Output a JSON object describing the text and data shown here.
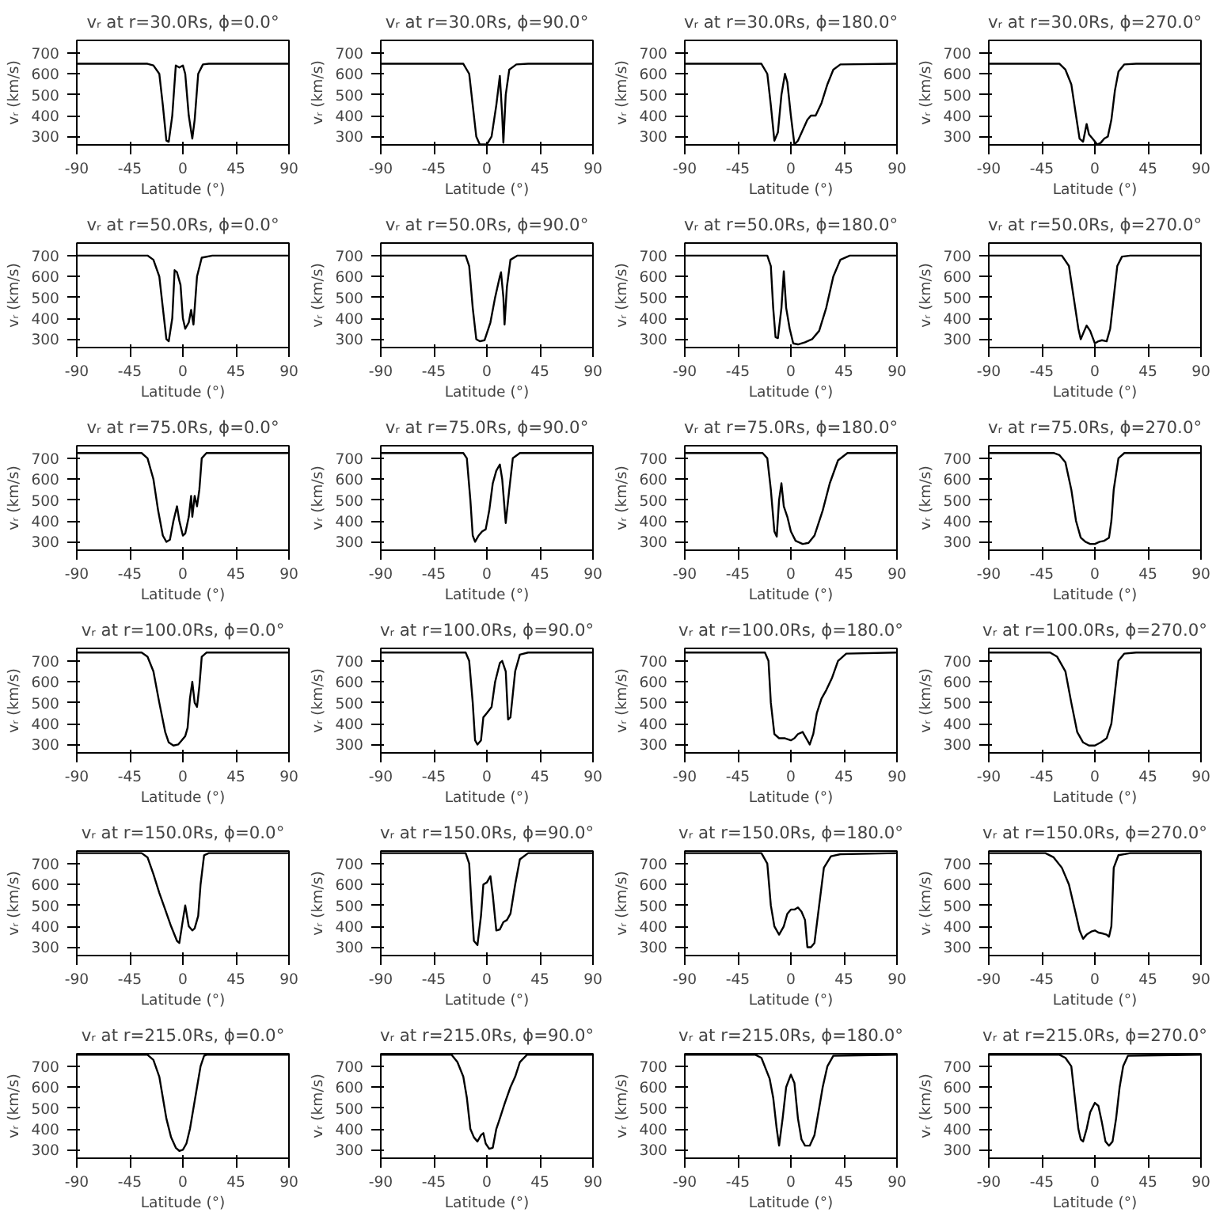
{
  "chart_data": [
    {
      "type": "line",
      "title": "vᵣ at r=30.0Rs, ϕ=0.0°",
      "xlabel": "Latitude (°)",
      "ylabel": "vᵣ (km/s)",
      "xlim": [
        -90,
        90
      ],
      "ylim": [
        260,
        760
      ],
      "xticks": [
        -90,
        -45,
        0,
        45,
        90
      ],
      "yticks": [
        300,
        400,
        500,
        600,
        700
      ],
      "series": [
        {
          "color": "#000000",
          "x": [
            -90,
            -30,
            -25,
            -20,
            -17,
            -14,
            -12,
            -9,
            -6,
            -3,
            0,
            2,
            5,
            8,
            10,
            13,
            17,
            22,
            90
          ],
          "values": [
            648,
            648,
            640,
            600,
            450,
            280,
            275,
            400,
            640,
            630,
            640,
            600,
            400,
            290,
            380,
            600,
            645,
            648,
            648
          ]
        }
      ]
    },
    {
      "type": "line",
      "title": "vᵣ at r=30.0Rs, ϕ=90.0°",
      "xlabel": "Latitude (°)",
      "ylabel": "vᵣ (km/s)",
      "xlim": [
        -90,
        90
      ],
      "ylim": [
        260,
        760
      ],
      "xticks": [
        -90,
        -45,
        0,
        45,
        90
      ],
      "yticks": [
        300,
        400,
        500,
        600,
        700
      ],
      "series": [
        {
          "color": "#000000",
          "x": [
            -90,
            -20,
            -15,
            -12,
            -9,
            -6,
            0,
            4,
            8,
            11,
            13,
            14,
            16,
            19,
            25,
            35,
            90
          ],
          "values": [
            648,
            648,
            600,
            450,
            300,
            262,
            262,
            300,
            450,
            590,
            400,
            270,
            500,
            620,
            645,
            648,
            648
          ]
        }
      ]
    },
    {
      "type": "line",
      "title": "vᵣ at r=30.0Rs, ϕ=180.0°",
      "xlabel": "Latitude (°)",
      "ylabel": "vᵣ (km/s)",
      "xlim": [
        -90,
        90
      ],
      "ylim": [
        260,
        760
      ],
      "xticks": [
        -90,
        -45,
        0,
        45,
        90
      ],
      "yticks": [
        300,
        400,
        500,
        600,
        700
      ],
      "series": [
        {
          "color": "#000000",
          "x": [
            -90,
            -25,
            -20,
            -17,
            -14,
            -11,
            -8,
            -5,
            -3,
            0,
            3,
            6,
            10,
            14,
            17,
            21,
            26,
            31,
            36,
            42,
            90
          ],
          "values": [
            648,
            648,
            600,
            450,
            280,
            320,
            500,
            600,
            560,
            400,
            262,
            280,
            330,
            380,
            400,
            400,
            460,
            550,
            620,
            645,
            648
          ]
        }
      ]
    },
    {
      "type": "line",
      "title": "vᵣ at r=30.0Rs, ϕ=270.0°",
      "xlabel": "Latitude (°)",
      "ylabel": "vᵣ (km/s)",
      "xlim": [
        -90,
        90
      ],
      "ylim": [
        260,
        760
      ],
      "xticks": [
        -90,
        -45,
        0,
        45,
        90
      ],
      "yticks": [
        300,
        400,
        500,
        600,
        700
      ],
      "series": [
        {
          "color": "#000000",
          "x": [
            -90,
            -30,
            -25,
            -20,
            -16,
            -13,
            -10,
            -7,
            -5,
            -2,
            2,
            5,
            8,
            11,
            14,
            17,
            20,
            25,
            35,
            90
          ],
          "values": [
            648,
            648,
            620,
            550,
            400,
            290,
            275,
            360,
            310,
            290,
            262,
            270,
            290,
            300,
            380,
            520,
            610,
            645,
            648,
            648
          ]
        }
      ]
    },
    {
      "type": "line",
      "title": "vᵣ at r=50.0Rs, ϕ=0.0°",
      "xlabel": "Latitude (°)",
      "ylabel": "vᵣ (km/s)",
      "xlim": [
        -90,
        90
      ],
      "ylim": [
        260,
        760
      ],
      "xticks": [
        -90,
        -45,
        0,
        45,
        90
      ],
      "yticks": [
        300,
        400,
        500,
        600,
        700
      ],
      "series": [
        {
          "color": "#000000",
          "x": [
            -90,
            -30,
            -25,
            -20,
            -17,
            -14,
            -12,
            -9,
            -7,
            -5,
            -2,
            0,
            2,
            5,
            7,
            9,
            12,
            16,
            25,
            90
          ],
          "values": [
            700,
            700,
            680,
            600,
            450,
            300,
            290,
            400,
            630,
            620,
            560,
            400,
            350,
            380,
            440,
            370,
            600,
            690,
            700,
            700
          ]
        }
      ]
    },
    {
      "type": "line",
      "title": "vᵣ at r=50.0Rs, ϕ=90.0°",
      "xlabel": "Latitude (°)",
      "ylabel": "vᵣ (km/s)",
      "xlim": [
        -90,
        90
      ],
      "ylim": [
        260,
        760
      ],
      "xticks": [
        -90,
        -45,
        0,
        45,
        90
      ],
      "yticks": [
        300,
        400,
        500,
        600,
        700
      ],
      "series": [
        {
          "color": "#000000",
          "x": [
            -90,
            -18,
            -15,
            -12,
            -9,
            -6,
            -2,
            3,
            7,
            11,
            12,
            14,
            15,
            17,
            20,
            26,
            90
          ],
          "values": [
            700,
            700,
            650,
            450,
            300,
            290,
            295,
            380,
            500,
            600,
            620,
            500,
            370,
            550,
            680,
            700,
            700
          ]
        }
      ]
    },
    {
      "type": "line",
      "title": "vᵣ at r=50.0Rs, ϕ=180.0°",
      "xlabel": "Latitude (°)",
      "ylabel": "vᵣ (km/s)",
      "xlim": [
        -90,
        90
      ],
      "ylim": [
        260,
        760
      ],
      "xticks": [
        -90,
        -45,
        0,
        45,
        90
      ],
      "yticks": [
        300,
        400,
        500,
        600,
        700
      ],
      "series": [
        {
          "color": "#000000",
          "x": [
            -90,
            -20,
            -17,
            -15,
            -13,
            -11,
            -8,
            -6,
            -4,
            -1,
            2,
            6,
            12,
            18,
            24,
            30,
            36,
            42,
            50,
            90
          ],
          "values": [
            700,
            700,
            650,
            450,
            310,
            305,
            450,
            625,
            450,
            350,
            280,
            275,
            285,
            300,
            340,
            450,
            600,
            680,
            700,
            700
          ]
        }
      ]
    },
    {
      "type": "line",
      "title": "vᵣ at r=50.0Rs, ϕ=270.0°",
      "xlabel": "Latitude (°)",
      "ylabel": "vᵣ (km/s)",
      "xlim": [
        -90,
        90
      ],
      "ylim": [
        260,
        760
      ],
      "xticks": [
        -90,
        -45,
        0,
        45,
        90
      ],
      "yticks": [
        300,
        400,
        500,
        600,
        700
      ],
      "series": [
        {
          "color": "#000000",
          "x": [
            -90,
            -28,
            -22,
            -18,
            -14,
            -12,
            -9,
            -7,
            -4,
            -2,
            0,
            3,
            6,
            10,
            13,
            16,
            19,
            23,
            30,
            90
          ],
          "values": [
            700,
            700,
            650,
            500,
            350,
            300,
            340,
            365,
            340,
            310,
            280,
            290,
            295,
            290,
            350,
            500,
            650,
            695,
            700,
            700
          ]
        }
      ]
    },
    {
      "type": "line",
      "title": "vᵣ at r=75.0Rs, ϕ=0.0°",
      "xlabel": "Latitude (°)",
      "ylabel": "vᵣ (km/s)",
      "xlim": [
        -90,
        90
      ],
      "ylim": [
        260,
        760
      ],
      "xticks": [
        -90,
        -45,
        0,
        45,
        90
      ],
      "yticks": [
        300,
        400,
        500,
        600,
        700
      ],
      "series": [
        {
          "color": "#000000",
          "x": [
            -90,
            -35,
            -30,
            -25,
            -21,
            -17,
            -14,
            -11,
            -8,
            -5,
            -3,
            0,
            2,
            5,
            7,
            8,
            10,
            12,
            14,
            16,
            20,
            90
          ],
          "values": [
            725,
            725,
            700,
            600,
            450,
            330,
            300,
            310,
            400,
            470,
            400,
            330,
            340,
            420,
            520,
            420,
            520,
            470,
            550,
            700,
            725,
            725
          ]
        }
      ]
    },
    {
      "type": "line",
      "title": "vᵣ at r=75.0Rs, ϕ=90.0°",
      "xlabel": "Latitude (°)",
      "ylabel": "vᵣ (km/s)",
      "xlim": [
        -90,
        90
      ],
      "ylim": [
        260,
        760
      ],
      "xticks": [
        -90,
        -45,
        0,
        45,
        90
      ],
      "yticks": [
        300,
        400,
        500,
        600,
        700
      ],
      "series": [
        {
          "color": "#000000",
          "x": [
            -90,
            -20,
            -17,
            -14,
            -12,
            -10,
            -7,
            -4,
            -1,
            2,
            5,
            8,
            11,
            13,
            16,
            19,
            22,
            28,
            90
          ],
          "values": [
            725,
            725,
            700,
            500,
            330,
            300,
            330,
            350,
            360,
            450,
            580,
            640,
            670,
            600,
            390,
            550,
            700,
            725,
            725
          ]
        }
      ]
    },
    {
      "type": "line",
      "title": "vᵣ at r=75.0Rs, ϕ=180.0°",
      "xlabel": "Latitude (°)",
      "ylabel": "vᵣ (km/s)",
      "xlim": [
        -90,
        90
      ],
      "ylim": [
        260,
        760
      ],
      "xticks": [
        -90,
        -45,
        0,
        45,
        90
      ],
      "yticks": [
        300,
        400,
        500,
        600,
        700
      ],
      "series": [
        {
          "color": "#000000",
          "x": [
            -90,
            -24,
            -20,
            -17,
            -14,
            -12,
            -10,
            -8,
            -6,
            -3,
            0,
            4,
            10,
            15,
            20,
            27,
            33,
            40,
            48,
            90
          ],
          "values": [
            725,
            725,
            700,
            550,
            350,
            325,
            500,
            580,
            470,
            420,
            350,
            305,
            290,
            295,
            330,
            450,
            580,
            690,
            725,
            725
          ]
        }
      ]
    },
    {
      "type": "line",
      "title": "vᵣ at r=75.0Rs, ϕ=270.0°",
      "xlabel": "Latitude (°)",
      "ylabel": "vᵣ (km/s)",
      "xlim": [
        -90,
        90
      ],
      "ylim": [
        260,
        760
      ],
      "xticks": [
        -90,
        -45,
        0,
        45,
        90
      ],
      "yticks": [
        300,
        400,
        500,
        600,
        700
      ],
      "series": [
        {
          "color": "#000000",
          "x": [
            -90,
            -35,
            -30,
            -25,
            -20,
            -16,
            -12,
            -8,
            -4,
            0,
            4,
            8,
            12,
            14,
            16,
            20,
            25,
            90
          ],
          "values": [
            725,
            725,
            715,
            680,
            550,
            400,
            320,
            300,
            290,
            290,
            300,
            305,
            320,
            400,
            550,
            700,
            725,
            725
          ]
        }
      ]
    },
    {
      "type": "line",
      "title": "vᵣ at r=100.0Rs, ϕ=0.0°",
      "xlabel": "Latitude (°)",
      "ylabel": "vᵣ (km/s)",
      "xlim": [
        -90,
        90
      ],
      "ylim": [
        260,
        760
      ],
      "xticks": [
        -90,
        -45,
        0,
        45,
        90
      ],
      "yticks": [
        300,
        400,
        500,
        600,
        700
      ],
      "series": [
        {
          "color": "#000000",
          "x": [
            -90,
            -35,
            -30,
            -25,
            -20,
            -15,
            -12,
            -8,
            -4,
            -1,
            2,
            4,
            6,
            8,
            10,
            12,
            14,
            16,
            20,
            90
          ],
          "values": [
            740,
            740,
            720,
            650,
            500,
            360,
            310,
            295,
            300,
            320,
            340,
            380,
            520,
            600,
            500,
            480,
            580,
            720,
            740,
            740
          ]
        }
      ]
    },
    {
      "type": "line",
      "title": "vᵣ at r=100.0Rs, ϕ=90.0°",
      "xlabel": "Latitude (°)",
      "ylabel": "vᵣ (km/s)",
      "xlim": [
        -90,
        90
      ],
      "ylim": [
        260,
        760
      ],
      "xticks": [
        -90,
        -45,
        0,
        45,
        90
      ],
      "yticks": [
        300,
        400,
        500,
        600,
        700
      ],
      "series": [
        {
          "color": "#000000",
          "x": [
            -90,
            -18,
            -15,
            -12,
            -10,
            -8,
            -5,
            -3,
            0,
            4,
            7,
            11,
            13,
            16,
            18,
            20,
            24,
            28,
            35,
            90
          ],
          "values": [
            740,
            740,
            700,
            500,
            320,
            300,
            320,
            430,
            450,
            480,
            600,
            690,
            700,
            650,
            420,
            430,
            650,
            730,
            740,
            740
          ]
        }
      ]
    },
    {
      "type": "line",
      "title": "vᵣ at r=100.0Rs, ϕ=180.0°",
      "xlabel": "Latitude (°)",
      "ylabel": "vᵣ (km/s)",
      "xlim": [
        -90,
        90
      ],
      "ylim": [
        260,
        760
      ],
      "xticks": [
        -90,
        -45,
        0,
        45,
        90
      ],
      "yticks": [
        300,
        400,
        500,
        600,
        700
      ],
      "series": [
        {
          "color": "#000000",
          "x": [
            -90,
            -22,
            -19,
            -17,
            -14,
            -10,
            -5,
            0,
            3,
            6,
            10,
            13,
            16,
            19,
            22,
            26,
            30,
            35,
            40,
            47,
            90
          ],
          "values": [
            740,
            740,
            700,
            500,
            350,
            330,
            330,
            320,
            330,
            350,
            360,
            330,
            300,
            350,
            450,
            520,
            560,
            620,
            700,
            735,
            740
          ]
        }
      ]
    },
    {
      "type": "line",
      "title": "vᵣ at r=100.0Rs, ϕ=270.0°",
      "xlabel": "Latitude (°)",
      "ylabel": "vᵣ (km/s)",
      "xlim": [
        -90,
        90
      ],
      "ylim": [
        260,
        760
      ],
      "xticks": [
        -90,
        -45,
        0,
        45,
        90
      ],
      "yticks": [
        300,
        400,
        500,
        600,
        700
      ],
      "series": [
        {
          "color": "#000000",
          "x": [
            -90,
            -38,
            -32,
            -25,
            -20,
            -15,
            -10,
            -5,
            0,
            5,
            10,
            14,
            17,
            20,
            25,
            35,
            90
          ],
          "values": [
            740,
            740,
            720,
            650,
            500,
            360,
            310,
            295,
            295,
            310,
            330,
            400,
            550,
            700,
            735,
            740,
            740
          ]
        }
      ]
    },
    {
      "type": "line",
      "title": "vᵣ at r=150.0Rs, ϕ=0.0°",
      "xlabel": "Latitude (°)",
      "ylabel": "vᵣ (km/s)",
      "xlim": [
        -90,
        90
      ],
      "ylim": [
        260,
        760
      ],
      "xticks": [
        -90,
        -45,
        0,
        45,
        90
      ],
      "yticks": [
        300,
        400,
        500,
        600,
        700
      ],
      "series": [
        {
          "color": "#000000",
          "x": [
            -90,
            -35,
            -30,
            -25,
            -20,
            -15,
            -10,
            -5,
            -3,
            0,
            2,
            5,
            8,
            10,
            13,
            15,
            18,
            22,
            90
          ],
          "values": [
            750,
            750,
            730,
            650,
            560,
            480,
            400,
            330,
            320,
            430,
            500,
            400,
            380,
            390,
            450,
            600,
            740,
            750,
            750
          ]
        }
      ]
    },
    {
      "type": "line",
      "title": "vᵣ at r=150.0Rs, ϕ=90.0°",
      "xlabel": "Latitude (°)",
      "ylabel": "vᵣ (km/s)",
      "xlim": [
        -90,
        90
      ],
      "ylim": [
        260,
        760
      ],
      "xticks": [
        -90,
        -45,
        0,
        45,
        90
      ],
      "yticks": [
        300,
        400,
        500,
        600,
        700
      ],
      "series": [
        {
          "color": "#000000",
          "x": [
            -90,
            -18,
            -15,
            -13,
            -11,
            -8,
            -5,
            -3,
            0,
            3,
            5,
            8,
            11,
            14,
            17,
            20,
            24,
            28,
            35,
            90
          ],
          "values": [
            750,
            750,
            700,
            500,
            330,
            310,
            450,
            600,
            610,
            640,
            550,
            380,
            385,
            420,
            430,
            460,
            600,
            720,
            750,
            750
          ]
        }
      ]
    },
    {
      "type": "line",
      "title": "vᵣ at r=150.0Rs, ϕ=180.0°",
      "xlabel": "Latitude (°)",
      "ylabel": "vᵣ (km/s)",
      "xlim": [
        -90,
        90
      ],
      "ylim": [
        260,
        760
      ],
      "xticks": [
        -90,
        -45,
        0,
        45,
        90
      ],
      "yticks": [
        300,
        400,
        500,
        600,
        700
      ],
      "series": [
        {
          "color": "#000000",
          "x": [
            -90,
            -25,
            -20,
            -17,
            -14,
            -10,
            -6,
            -3,
            0,
            3,
            6,
            9,
            12,
            14,
            17,
            20,
            24,
            28,
            34,
            42,
            90
          ],
          "values": [
            750,
            750,
            700,
            500,
            400,
            360,
            400,
            460,
            480,
            480,
            490,
            470,
            430,
            300,
            300,
            320,
            500,
            680,
            735,
            745,
            750
          ]
        }
      ]
    },
    {
      "type": "line",
      "title": "vᵣ at r=150.0Rs, ϕ=270.0°",
      "xlabel": "Latitude (°)",
      "ylabel": "vᵣ (km/s)",
      "xlim": [
        -90,
        90
      ],
      "ylim": [
        260,
        760
      ],
      "xticks": [
        -90,
        -45,
        0,
        45,
        90
      ],
      "yticks": [
        300,
        400,
        500,
        600,
        700
      ],
      "series": [
        {
          "color": "#000000",
          "x": [
            -90,
            -42,
            -35,
            -28,
            -22,
            -17,
            -13,
            -10,
            -7,
            -3,
            0,
            3,
            7,
            10,
            12,
            14,
            16,
            20,
            30,
            90
          ],
          "values": [
            750,
            750,
            730,
            680,
            600,
            480,
            380,
            340,
            360,
            375,
            380,
            370,
            365,
            360,
            350,
            400,
            680,
            740,
            750,
            750
          ]
        }
      ]
    },
    {
      "type": "line",
      "title": "vᵣ at r=215.0Rs, ϕ=0.0°",
      "xlabel": "Latitude (°)",
      "ylabel": "vᵣ (km/s)",
      "xlim": [
        -90,
        90
      ],
      "ylim": [
        260,
        760
      ],
      "xticks": [
        -90,
        -45,
        0,
        45,
        90
      ],
      "yticks": [
        300,
        400,
        500,
        600,
        700
      ],
      "series": [
        {
          "color": "#000000",
          "x": [
            -90,
            -30,
            -25,
            -20,
            -17,
            -14,
            -10,
            -6,
            -3,
            0,
            3,
            6,
            9,
            12,
            15,
            18,
            20,
            90
          ],
          "values": [
            755,
            755,
            730,
            650,
            550,
            450,
            360,
            310,
            295,
            300,
            330,
            400,
            500,
            600,
            700,
            750,
            755,
            755
          ]
        }
      ]
    },
    {
      "type": "line",
      "title": "vᵣ at r=215.0Rs, ϕ=90.0°",
      "xlabel": "Latitude (°)",
      "ylabel": "vᵣ (km/s)",
      "xlim": [
        -90,
        90
      ],
      "ylim": [
        260,
        760
      ],
      "xticks": [
        -90,
        -45,
        0,
        45,
        90
      ],
      "yticks": [
        300,
        400,
        500,
        600,
        700
      ],
      "series": [
        {
          "color": "#000000",
          "x": [
            -90,
            -30,
            -25,
            -20,
            -17,
            -14,
            -11,
            -8,
            -5,
            -3,
            -1,
            2,
            5,
            8,
            11,
            15,
            20,
            24,
            28,
            34,
            90
          ],
          "values": [
            755,
            755,
            720,
            650,
            550,
            400,
            360,
            340,
            370,
            380,
            330,
            305,
            310,
            400,
            450,
            520,
            600,
            650,
            720,
            755,
            755
          ]
        }
      ]
    },
    {
      "type": "line",
      "title": "vᵣ at r=215.0Rs, ϕ=180.0°",
      "xlabel": "Latitude (°)",
      "ylabel": "vᵣ (km/s)",
      "xlim": [
        -90,
        90
      ],
      "ylim": [
        260,
        760
      ],
      "xticks": [
        -90,
        -45,
        0,
        45,
        90
      ],
      "yticks": [
        300,
        400,
        500,
        600,
        700
      ],
      "series": [
        {
          "color": "#000000",
          "x": [
            -90,
            -30,
            -25,
            -18,
            -15,
            -12,
            -10,
            -7,
            -4,
            0,
            3,
            6,
            9,
            12,
            16,
            20,
            24,
            27,
            31,
            36,
            90
          ],
          "values": [
            755,
            755,
            740,
            640,
            550,
            400,
            320,
            450,
            600,
            660,
            620,
            450,
            350,
            320,
            320,
            370,
            500,
            600,
            700,
            750,
            755
          ]
        }
      ]
    },
    {
      "type": "line",
      "title": "vᵣ at r=215.0Rs, ϕ=270.0°",
      "xlabel": "Latitude (°)",
      "ylabel": "vᵣ (km/s)",
      "xlim": [
        -90,
        90
      ],
      "ylim": [
        260,
        760
      ],
      "xticks": [
        -90,
        -45,
        0,
        45,
        90
      ],
      "yticks": [
        300,
        400,
        500,
        600,
        700
      ],
      "series": [
        {
          "color": "#000000",
          "x": [
            -90,
            -30,
            -25,
            -20,
            -17,
            -14,
            -12,
            -10,
            -7,
            -4,
            0,
            3,
            6,
            9,
            12,
            15,
            18,
            21,
            24,
            28,
            90
          ],
          "values": [
            755,
            755,
            740,
            700,
            550,
            400,
            350,
            340,
            400,
            480,
            525,
            510,
            430,
            340,
            320,
            340,
            450,
            600,
            700,
            750,
            755
          ]
        }
      ]
    }
  ]
}
